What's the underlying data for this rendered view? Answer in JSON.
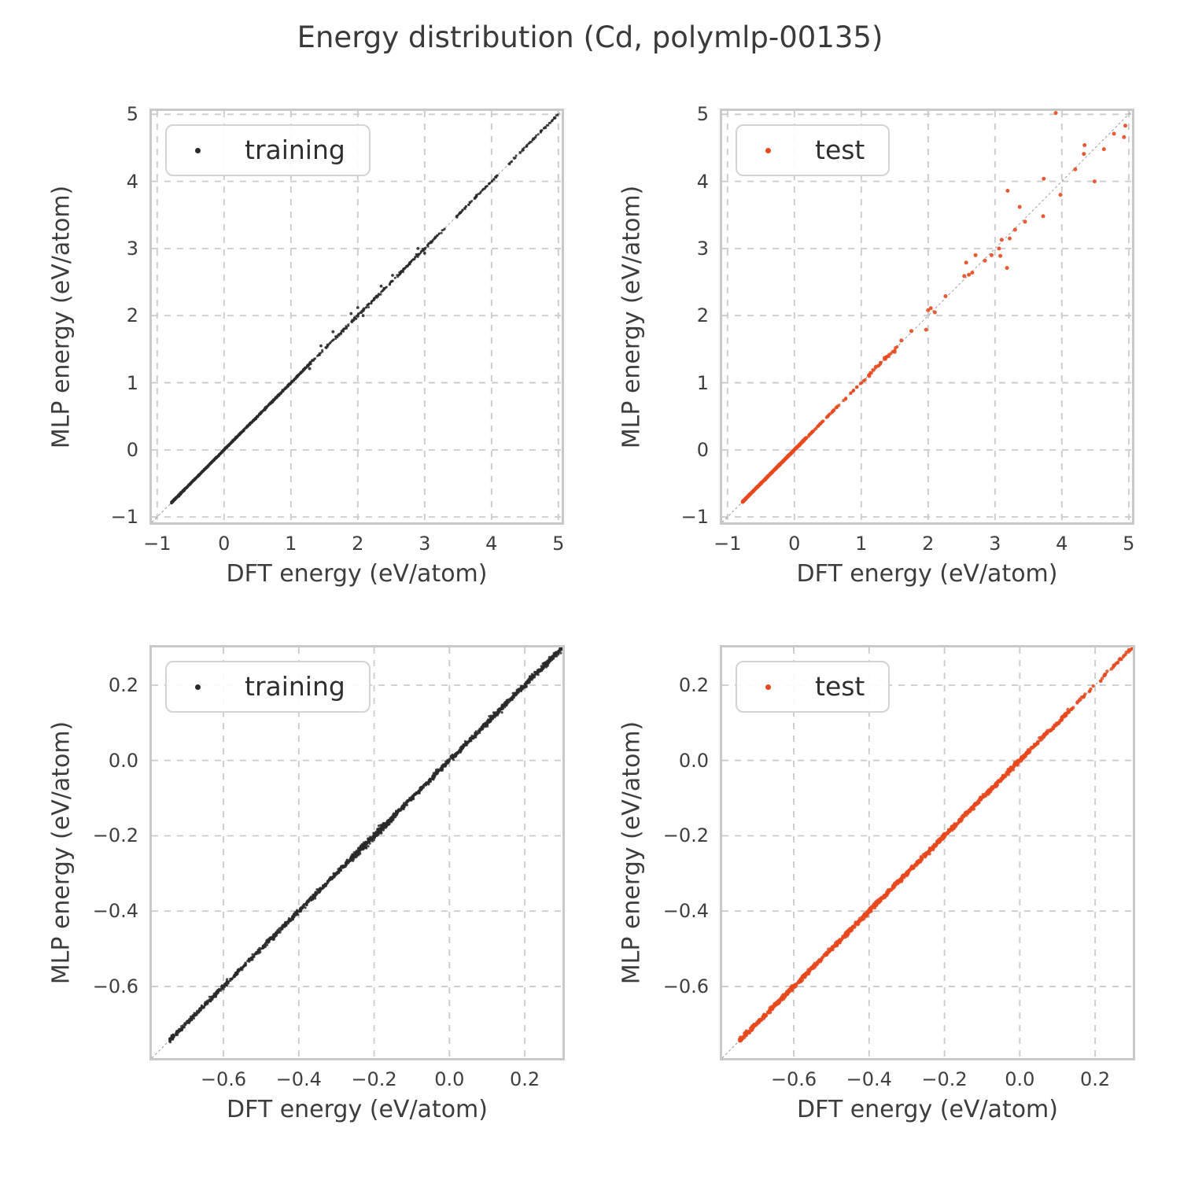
{
  "title": "Energy distribution (Cd, polymlp-00135)",
  "colors": {
    "training": "#2a2a2a",
    "test": "#e8491f",
    "grid": "#cccccc",
    "frame": "#c9c9c9",
    "identity_line": "#999999",
    "text": "#3a3a3a"
  },
  "chart_data": [
    {
      "name": "training-full-range",
      "type": "scatter",
      "series_name": "training",
      "color_key": "training",
      "legend": {
        "label": "training",
        "position": "upper-left"
      },
      "xlabel": "DFT energy (eV/atom)",
      "ylabel": "MLP energy (eV/atom)",
      "xlim": [
        -1.08,
        5.05
      ],
      "ylim": [
        -1.08,
        5.05
      ],
      "xticks": [
        -1,
        0,
        1,
        2,
        3,
        4,
        5
      ],
      "yticks": [
        -1,
        0,
        1,
        2,
        3,
        4,
        5
      ],
      "tick_decimals": 0,
      "grid": "dashed",
      "identity_line": true,
      "marker_radius": 1.5,
      "seed": 11,
      "dense_bands": [
        {
          "from": -0.79,
          "to": -0.6,
          "n": 260,
          "jitter": 0.006
        },
        {
          "from": -0.78,
          "to": 0.3,
          "n": 1250,
          "jitter": 0.005
        },
        {
          "from": 0.3,
          "to": 1.3,
          "n": 420,
          "jitter": 0.007
        },
        {
          "from": 1.3,
          "to": 2.6,
          "n": 150,
          "jitter": 0.012
        },
        {
          "from": 2.6,
          "to": 3.35,
          "n": 90,
          "jitter": 0.01
        },
        {
          "from": 3.45,
          "to": 4.1,
          "n": 70,
          "jitter": 0.008
        },
        {
          "from": 4.25,
          "to": 5.0,
          "n": 60,
          "jitter": 0.008
        }
      ],
      "points": [
        [
          1.63,
          1.76
        ],
        [
          1.9,
          2.03
        ],
        [
          2.0,
          2.12
        ],
        [
          1.28,
          1.21
        ],
        [
          2.08,
          2.0
        ],
        [
          2.35,
          2.44
        ],
        [
          2.52,
          2.6
        ],
        [
          2.9,
          3.0
        ],
        [
          3.0,
          2.93
        ],
        [
          1.45,
          1.55
        ]
      ]
    },
    {
      "name": "test-full-range",
      "type": "scatter",
      "series_name": "test",
      "color_key": "test",
      "legend": {
        "label": "test",
        "position": "upper-left"
      },
      "xlabel": "DFT energy (eV/atom)",
      "ylabel": "MLP energy (eV/atom)",
      "xlim": [
        -1.08,
        5.05
      ],
      "ylim": [
        -1.08,
        5.05
      ],
      "xticks": [
        -1,
        0,
        1,
        2,
        3,
        4,
        5
      ],
      "yticks": [
        -1,
        0,
        1,
        2,
        3,
        4,
        5
      ],
      "tick_decimals": 0,
      "grid": "dashed",
      "identity_line": true,
      "marker_radius": 2.1,
      "seed": 23,
      "dense_bands": [
        {
          "from": -0.78,
          "to": 0.18,
          "n": 820,
          "jitter": 0.004
        },
        {
          "from": 0.18,
          "to": 1.05,
          "n": 55,
          "jitter": 0.004
        },
        {
          "from": 1.05,
          "to": 1.55,
          "n": 28,
          "jitter": 0.01
        }
      ],
      "points": [
        [
          2.26,
          2.29
        ],
        [
          2.54,
          2.59
        ],
        [
          2.61,
          2.61
        ],
        [
          2.66,
          2.64
        ],
        [
          2.57,
          2.79
        ],
        [
          2.85,
          2.82
        ],
        [
          2.71,
          2.9
        ],
        [
          3.18,
          2.71
        ],
        [
          3.06,
          3.0
        ],
        [
          3.08,
          2.89
        ],
        [
          3.1,
          3.13
        ],
        [
          3.22,
          3.15
        ],
        [
          3.45,
          3.4
        ],
        [
          3.72,
          3.48
        ],
        [
          3.37,
          3.62
        ],
        [
          3.98,
          3.8
        ],
        [
          3.19,
          3.86
        ],
        [
          4.49,
          4.0
        ],
        [
          3.73,
          4.04
        ],
        [
          4.2,
          4.18
        ],
        [
          4.33,
          4.41
        ],
        [
          4.63,
          4.48
        ],
        [
          4.34,
          4.54
        ],
        [
          4.93,
          4.66
        ],
        [
          4.78,
          4.71
        ],
        [
          4.95,
          4.83
        ],
        [
          3.91,
          5.02
        ],
        [
          2.0,
          2.08
        ],
        [
          2.04,
          2.11
        ],
        [
          1.97,
          1.79
        ],
        [
          1.6,
          1.63
        ],
        [
          2.1,
          2.05
        ],
        [
          1.75,
          1.77
        ],
        [
          1.5,
          1.46
        ],
        [
          3.3,
          3.28
        ],
        [
          2.95,
          2.9
        ],
        [
          1.35,
          1.37
        ],
        [
          1.22,
          1.24
        ],
        [
          1.12,
          1.1
        ]
      ]
    },
    {
      "name": "training-zoomed",
      "type": "scatter",
      "series_name": "training",
      "color_key": "training",
      "legend": {
        "label": "training",
        "position": "upper-left"
      },
      "xlabel": "DFT energy (eV/atom)",
      "ylabel": "MLP energy (eV/atom)",
      "xlim": [
        -0.79,
        0.3
      ],
      "ylim": [
        -0.79,
        0.3
      ],
      "xticks": [
        -0.6,
        -0.4,
        -0.2,
        0.0,
        0.2
      ],
      "yticks": [
        -0.6,
        -0.4,
        -0.2,
        0.0,
        0.2
      ],
      "tick_decimals": 1,
      "grid": "dashed",
      "identity_line": true,
      "marker_radius": 1.6,
      "seed": 37,
      "dense_bands": [
        {
          "from": -0.745,
          "to": 0.305,
          "n": 1500,
          "jitter": 0.0032
        },
        {
          "from": -0.26,
          "to": -0.12,
          "n": 200,
          "jitter": 0.0055
        },
        {
          "from": 0.1,
          "to": 0.305,
          "n": 120,
          "jitter": 0.0045
        }
      ],
      "points": [
        [
          -0.19,
          -0.183
        ],
        [
          -0.175,
          -0.168
        ],
        [
          -0.21,
          -0.205
        ],
        [
          0.22,
          0.228
        ],
        [
          0.26,
          0.252
        ],
        [
          0.18,
          0.186
        ]
      ]
    },
    {
      "name": "test-zoomed",
      "type": "scatter",
      "series_name": "test",
      "color_key": "test",
      "legend": {
        "label": "test",
        "position": "upper-left"
      },
      "xlabel": "DFT energy (eV/atom)",
      "ylabel": "MLP energy (eV/atom)",
      "xlim": [
        -0.79,
        0.3
      ],
      "ylim": [
        -0.79,
        0.3
      ],
      "xticks": [
        -0.6,
        -0.4,
        -0.2,
        0.0,
        0.2
      ],
      "yticks": [
        -0.6,
        -0.4,
        -0.2,
        0.0,
        0.2
      ],
      "tick_decimals": 1,
      "grid": "dashed",
      "identity_line": true,
      "marker_radius": 2.2,
      "seed": 53,
      "dense_bands": [
        {
          "from": -0.745,
          "to": 0.02,
          "n": 1000,
          "jitter": 0.0028
        },
        {
          "from": 0.02,
          "to": 0.13,
          "n": 90,
          "jitter": 0.0032
        },
        {
          "from": 0.13,
          "to": 0.305,
          "n": 45,
          "jitter": 0.002
        }
      ],
      "points": [
        [
          -0.45,
          -0.447
        ],
        [
          -0.31,
          -0.306
        ],
        [
          -0.18,
          -0.176
        ],
        [
          0.07,
          0.072
        ],
        [
          0.16,
          0.162
        ],
        [
          0.25,
          0.252
        ],
        [
          0.29,
          0.293
        ]
      ]
    }
  ]
}
